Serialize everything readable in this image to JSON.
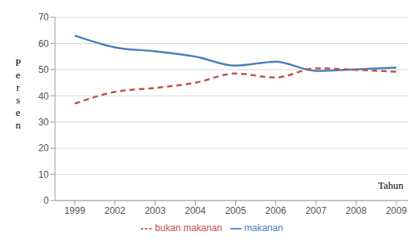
{
  "chart_data": {
    "type": "line",
    "x_label": "Tahun",
    "y_label": "Persen",
    "categories": [
      "1999",
      "2002",
      "2003",
      "2004",
      "2005",
      "2006",
      "2007",
      "2008",
      "2009"
    ],
    "series": [
      {
        "name": "makanan",
        "color": "#4a7ebb",
        "line_style": "solid",
        "values": [
          63,
          58.5,
          57,
          55,
          51.5,
          53,
          49.5,
          50.1,
          50.8
        ]
      },
      {
        "name": "bukan makanan",
        "color": "#c0504d",
        "line_style": "dashed",
        "values": [
          37,
          41.5,
          43,
          45,
          48.5,
          47,
          50.5,
          49.9,
          49.2
        ]
      }
    ],
    "ylim": [
      0,
      70
    ],
    "yticks": [
      0,
      10,
      20,
      30,
      40,
      50,
      60,
      70
    ],
    "grid": true,
    "legend": "bottom"
  }
}
